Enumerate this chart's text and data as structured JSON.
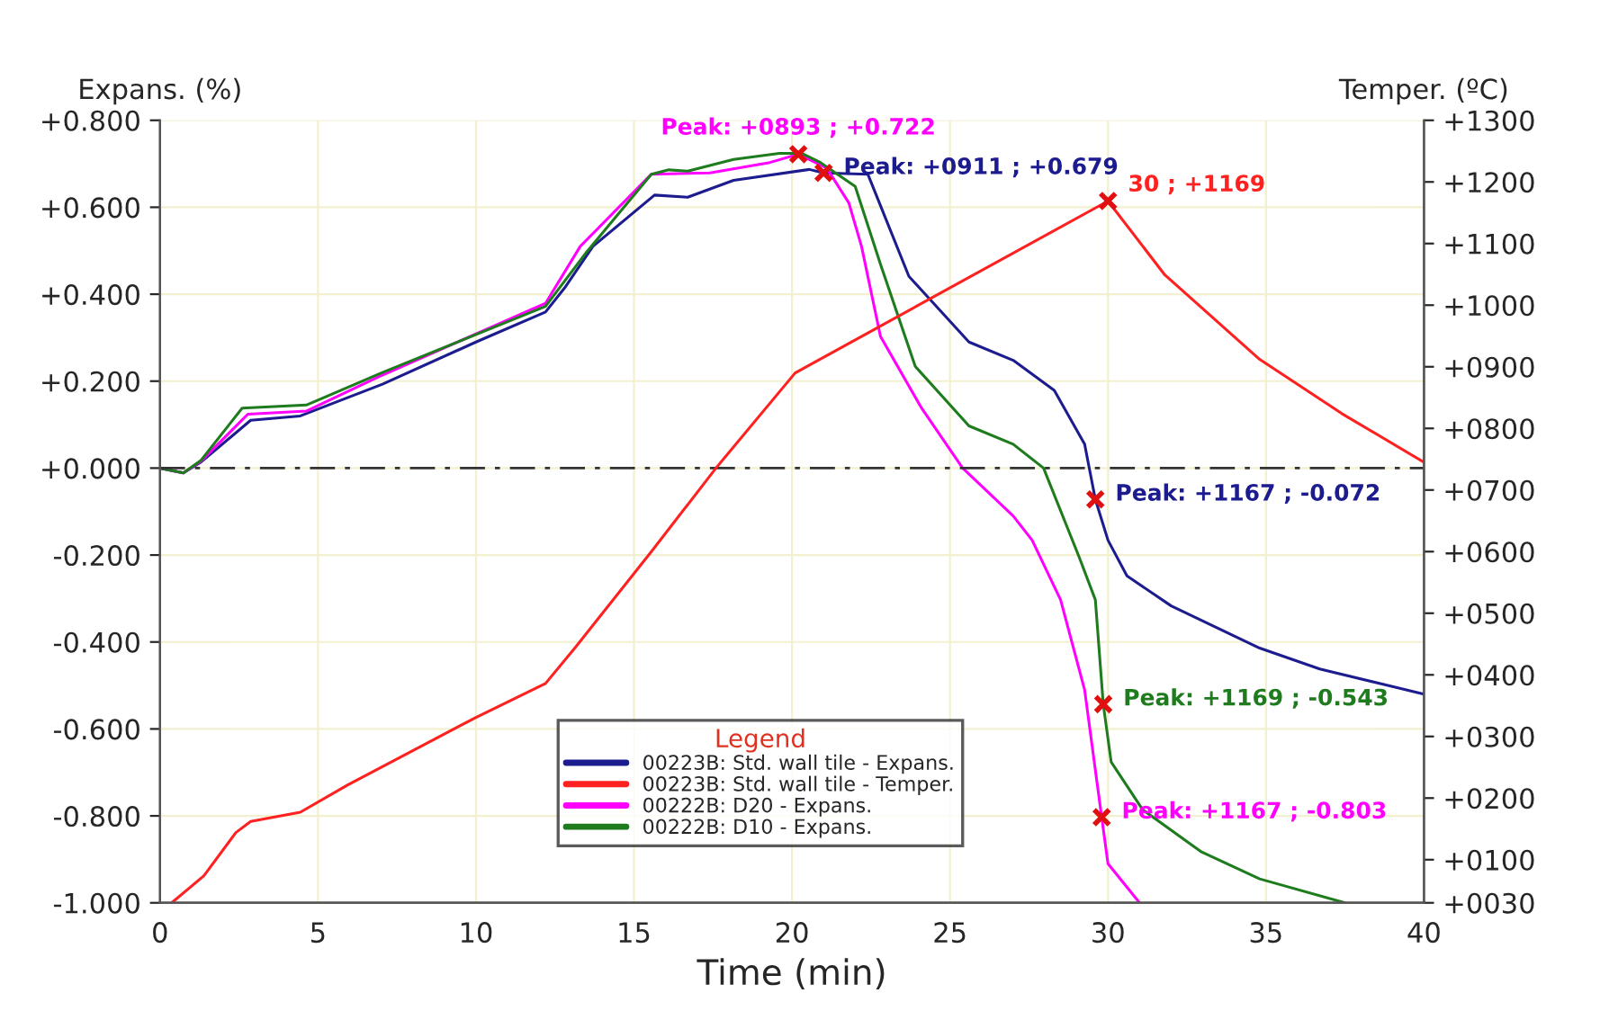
{
  "chart_data": {
    "type": "line",
    "xlabel": "Time (min)",
    "ylabel": "Expans. (%)",
    "y2label": "Temper. (ºC)",
    "legend_title": "Legend",
    "xlim": [
      0,
      40
    ],
    "xticks": [
      0,
      5,
      10,
      15,
      20,
      25,
      30,
      35,
      40
    ],
    "ylim": [
      -1.0,
      0.8
    ],
    "yticks": [
      {
        "value": -1.0,
        "label": "-1.000"
      },
      {
        "value": -0.8,
        "label": "-0.800"
      },
      {
        "value": -0.6,
        "label": "-0.600"
      },
      {
        "value": -0.4,
        "label": "-0.400"
      },
      {
        "value": -0.2,
        "label": "-0.200"
      },
      {
        "value": 0,
        "label": "+0.000"
      },
      {
        "value": 0.2,
        "label": "+0.200"
      },
      {
        "value": 0.4,
        "label": "+0.400"
      },
      {
        "value": 0.6,
        "label": "+0.600"
      },
      {
        "value": 0.8,
        "label": "+0.800"
      }
    ],
    "y2lim": [
      30,
      1300
    ],
    "y2ticks": [
      {
        "value": 30,
        "label": "+0030"
      },
      {
        "value": 100,
        "label": "+0100"
      },
      {
        "value": 200,
        "label": "+0200"
      },
      {
        "value": 300,
        "label": "+0300"
      },
      {
        "value": 400,
        "label": "+0400"
      },
      {
        "value": 500,
        "label": "+0500"
      },
      {
        "value": 600,
        "label": "+0600"
      },
      {
        "value": 700,
        "label": "+0700"
      },
      {
        "value": 800,
        "label": "+0800"
      },
      {
        "value": 900,
        "label": "+0900"
      },
      {
        "value": 1000,
        "label": "+1000"
      },
      {
        "value": 1100,
        "label": "+1100"
      },
      {
        "value": 1200,
        "label": "+1200"
      },
      {
        "value": 1300,
        "label": "+1300"
      }
    ],
    "grid": true,
    "legend": "bottom",
    "ref_lines": [
      {
        "axis": "y",
        "value": 0,
        "line_style": "dashed",
        "color": "#333333"
      }
    ],
    "series": [
      {
        "name": "00223B: Std. wall tile - Expans.",
        "color": "#1c1c8f",
        "x": [
          0,
          0.74,
          1.3,
          2.87,
          4.44,
          7.04,
          10,
          12.2,
          12.8,
          13.7,
          15.65,
          16.7,
          18.15,
          20.55,
          21,
          22.4,
          23.7,
          25.6,
          27.0,
          28.3,
          29.26,
          29.6,
          30,
          30.6,
          32.0,
          34.8,
          36.7,
          40
        ],
        "values": [
          0,
          -0.011,
          0.014,
          0.11,
          0.12,
          0.193,
          0.29,
          0.359,
          0.414,
          0.51,
          0.628,
          0.623,
          0.662,
          0.687,
          0.679,
          0.676,
          0.441,
          0.29,
          0.248,
          0.179,
          0.055,
          -0.072,
          -0.166,
          -0.248,
          -0.317,
          -0.414,
          -0.462,
          -0.52
        ],
        "value_labels": [
          null,
          null,
          null,
          null,
          null,
          null,
          null,
          null,
          null,
          null,
          null,
          null,
          null,
          null,
          "Peak: +0911 ; +0.679",
          null,
          null,
          null,
          null,
          null,
          null,
          "Peak: +1167 ; -0.072",
          null,
          null,
          null,
          null,
          null,
          null
        ]
      },
      {
        "name": "00223B: Std. wall tile - Temper.",
        "color": "#ff2020",
        "axis": "y2",
        "x": [
          0.37,
          1.39,
          2.4,
          2.87,
          4.44,
          5.93,
          10,
          12.2,
          13.15,
          15.55,
          17.6,
          20.1,
          30,
          31.8,
          34.8,
          37.4,
          40
        ],
        "values": [
          30,
          74,
          144,
          162,
          177,
          221,
          331,
          386,
          445,
          600,
          736,
          890,
          1169,
          1049,
          912,
          824,
          745
        ],
        "value_labels": [
          null,
          null,
          null,
          null,
          null,
          null,
          null,
          null,
          null,
          null,
          null,
          null,
          "30 ; +1169",
          null,
          null,
          null,
          null
        ]
      },
      {
        "name": "00222B: D20 - Expans.",
        "color": "#ff00ff",
        "x": [
          0,
          0.74,
          1.3,
          2.78,
          4.63,
          7.04,
          12.2,
          13.3,
          15.55,
          17.4,
          19.3,
          20.2,
          21.1,
          21.8,
          22.2,
          22.8,
          24.1,
          25.4,
          27.0,
          27.6,
          28.5,
          29.26,
          29.8,
          30,
          31.0
        ],
        "values": [
          0,
          -0.011,
          0.016,
          0.124,
          0.131,
          0.214,
          0.379,
          0.51,
          0.676,
          0.679,
          0.703,
          0.722,
          0.69,
          0.61,
          0.51,
          0.303,
          0.138,
          0.0,
          -0.11,
          -0.166,
          -0.303,
          -0.51,
          -0.803,
          -0.91,
          -1.0
        ],
        "value_labels": [
          null,
          null,
          null,
          null,
          null,
          null,
          null,
          null,
          null,
          null,
          null,
          "Peak: +0893 ; +0.722",
          null,
          null,
          null,
          null,
          null,
          null,
          null,
          null,
          null,
          null,
          "Peak: +1167 ; -0.803",
          null,
          null
        ]
      },
      {
        "name": "00222B: D10 - Expans.",
        "color": "#1e7b1e",
        "x": [
          0,
          0.74,
          1.3,
          2.6,
          4.63,
          7.04,
          12.2,
          13.5,
          15.55,
          16.1,
          16.7,
          18.15,
          19.6,
          20.3,
          20.9,
          22.0,
          22.8,
          23.9,
          25.6,
          27.0,
          27.96,
          29.1,
          29.6,
          29.85,
          30.1,
          31.1,
          32.96,
          34.8,
          37.5
        ],
        "values": [
          0,
          -0.011,
          0.018,
          0.138,
          0.145,
          0.22,
          0.372,
          0.497,
          0.676,
          0.686,
          0.683,
          0.71,
          0.724,
          0.724,
          0.703,
          0.648,
          0.469,
          0.234,
          0.097,
          0.055,
          0.0,
          -0.207,
          -0.303,
          -0.543,
          -0.676,
          -0.786,
          -0.883,
          -0.945,
          -1.0
        ],
        "value_labels": [
          null,
          null,
          null,
          null,
          null,
          null,
          null,
          null,
          null,
          null,
          null,
          null,
          null,
          null,
          null,
          null,
          null,
          null,
          null,
          null,
          null,
          null,
          null,
          "Peak: +1169 ; -0.543",
          null,
          null,
          null,
          null,
          null
        ]
      }
    ]
  }
}
